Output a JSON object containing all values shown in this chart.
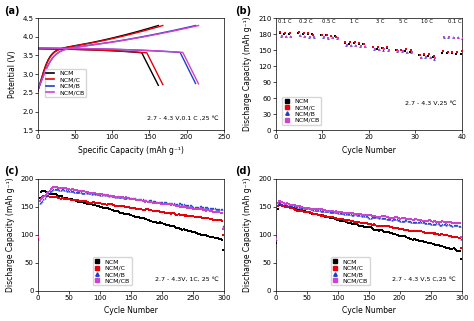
{
  "colors": {
    "NCM": "#000000",
    "NCM/C": "#e8000b",
    "NCM/B": "#1f3ecc",
    "NCM/CB": "#cc44cc"
  },
  "panel_a": {
    "xlabel": "Specific Capacity (mAh g⁻¹)",
    "ylabel": "Potential (V)",
    "annotation": "2.7 - 4.3 V,0.1 C ,25 ℃",
    "xlim": [
      0,
      250
    ],
    "ylim": [
      1.5,
      4.5
    ],
    "yticks": [
      1.5,
      2.0,
      2.5,
      3.0,
      3.5,
      4.0,
      4.5
    ],
    "xticks": [
      0,
      50,
      100,
      150,
      200,
      250
    ]
  },
  "panel_b": {
    "xlabel": "Cycle Number",
    "ylabel": "Discharge Capacity (mAh g⁻¹)",
    "annotation": "2.7 - 4.3 V,25 ℃",
    "xlim": [
      0,
      40
    ],
    "ylim": [
      0,
      210
    ],
    "yticks": [
      0,
      30,
      60,
      90,
      120,
      150,
      180,
      210
    ],
    "xticks": [
      0,
      10,
      20,
      30,
      40
    ]
  },
  "panel_c": {
    "xlabel": "Cycle Number",
    "ylabel": "Discharge Capacity (mAh g⁻¹)",
    "annotation": "2.7 - 4.3V, 1C, 25 ℃",
    "xlim": [
      0,
      300
    ],
    "ylim": [
      0,
      200
    ],
    "yticks": [
      0,
      50,
      100,
      150,
      200
    ],
    "xticks": [
      0,
      50,
      100,
      150,
      200,
      250,
      300
    ]
  },
  "panel_d": {
    "xlabel": "Cycle Number",
    "ylabel": "Discharge Capacity (mAh g⁻¹)",
    "annotation": "2.7 - 4.3 V,5 C,25 ℃",
    "xlim": [
      0,
      300
    ],
    "ylim": [
      0,
      200
    ],
    "yticks": [
      0,
      50,
      100,
      150,
      200
    ],
    "xticks": [
      0,
      50,
      100,
      150,
      200,
      250,
      300
    ]
  }
}
